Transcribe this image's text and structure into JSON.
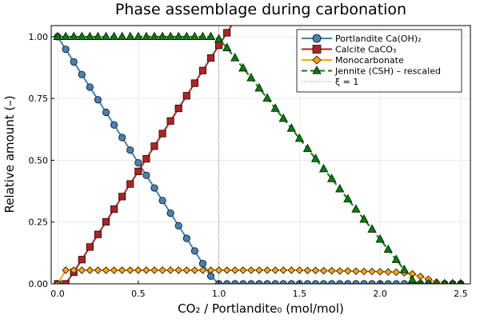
{
  "chart_data": {
    "type": "line",
    "title": "Phase assemblage during carbonation",
    "xlabel": "CO₂ / Portlandite₀  (mol/mol)",
    "ylabel": "Relative amount  (–)",
    "xlim": [
      -0.04,
      2.56
    ],
    "ylim": [
      0,
      1.045
    ],
    "xticks": [
      "0.0",
      "0.5",
      "1.0",
      "1.5",
      "2.0",
      "2.5"
    ],
    "xtick_values": [
      0,
      0.5,
      1.0,
      1.5,
      2.0,
      2.5
    ],
    "yticks": [
      "0.00",
      "0.25",
      "0.50",
      "0.75",
      "1.00"
    ],
    "ytick_values": [
      0,
      0.25,
      0.5,
      0.75,
      1.0
    ],
    "grid": true,
    "legend_position": "top-right",
    "x": [
      0,
      0.05,
      0.1,
      0.15,
      0.2,
      0.25,
      0.3,
      0.35,
      0.4,
      0.45,
      0.5,
      0.55,
      0.6,
      0.65,
      0.7,
      0.75,
      0.8,
      0.85,
      0.9,
      0.95,
      1.0,
      1.05,
      1.1,
      1.15,
      1.2,
      1.25,
      1.3,
      1.35,
      1.4,
      1.45,
      1.5,
      1.55,
      1.6,
      1.65,
      1.7,
      1.75,
      1.8,
      1.85,
      1.9,
      1.95,
      2.0,
      2.05,
      2.1,
      2.15,
      2.2,
      2.25,
      2.3,
      2.35,
      2.4,
      2.45,
      2.5
    ],
    "series": [
      {
        "name": "Portlandite  Ca(OH)₂",
        "color": "#4682b4",
        "marker": "circle",
        "dash": false,
        "values": [
          1.0,
          0.949,
          0.898,
          0.847,
          0.796,
          0.745,
          0.694,
          0.643,
          0.592,
          0.541,
          0.49,
          0.439,
          0.388,
          0.337,
          0.286,
          0.235,
          0.184,
          0.133,
          0.082,
          0.031,
          0,
          0,
          0,
          0,
          0,
          0,
          0,
          0,
          0,
          0,
          0,
          0,
          0,
          0,
          0,
          0,
          0,
          0,
          0,
          0,
          0,
          0,
          0,
          0,
          0,
          0,
          0,
          0,
          0,
          0,
          0
        ]
      },
      {
        "name": "Calcite  CaCO₃",
        "color": "#b22222",
        "marker": "square",
        "dash": false,
        "values": [
          0,
          0,
          0.047,
          0.098,
          0.149,
          0.2,
          0.251,
          0.302,
          0.353,
          0.404,
          0.455,
          0.506,
          0.557,
          0.608,
          0.659,
          0.71,
          0.761,
          0.812,
          0.863,
          0.914,
          0.965,
          1.016,
          1.067,
          null,
          null,
          null,
          null,
          null,
          null,
          null,
          null,
          null,
          null,
          null,
          null,
          null,
          null,
          null,
          null,
          null,
          null,
          null,
          null,
          null,
          null,
          null,
          null,
          null,
          null,
          null,
          null
        ]
      },
      {
        "name": "Monocarbonate",
        "color": "#ffa500",
        "marker": "diamond",
        "dash": false,
        "values": [
          0,
          0.055,
          0.055,
          0.055,
          0.055,
          0.055,
          0.055,
          0.055,
          0.055,
          0.055,
          0.055,
          0.055,
          0.055,
          0.055,
          0.055,
          0.055,
          0.055,
          0.055,
          0.055,
          0.055,
          0.055,
          0.055,
          0.055,
          0.055,
          0.055,
          0.055,
          0.055,
          0.055,
          0.055,
          0.055,
          0.055,
          0.054,
          0.054,
          0.053,
          0.053,
          0.052,
          0.052,
          0.051,
          0.05,
          0.05,
          0.049,
          0.048,
          0.047,
          0.045,
          0.04,
          0.03,
          0.018,
          0.007,
          0,
          0,
          0
        ]
      },
      {
        "name": "Jennite (CSH)  – rescaled",
        "color": "#008000",
        "marker": "triangle",
        "dash": true,
        "values": [
          1,
          1,
          1,
          1,
          1,
          1,
          1,
          1,
          1,
          1,
          1,
          1,
          1,
          1,
          1,
          1,
          1,
          1,
          1,
          1,
          0.99,
          0.955,
          0.914,
          0.873,
          0.833,
          0.792,
          0.751,
          0.71,
          0.669,
          0.629,
          0.588,
          0.547,
          0.506,
          0.465,
          0.425,
          0.384,
          0.343,
          0.302,
          0.261,
          0.221,
          0.18,
          0.139,
          0.098,
          0.057,
          0.016,
          0,
          0,
          0,
          0,
          0,
          0
        ]
      }
    ],
    "reference_line": {
      "name": "ξ = 1",
      "x": 1.0,
      "color": "#808080",
      "style": "dotted"
    }
  }
}
